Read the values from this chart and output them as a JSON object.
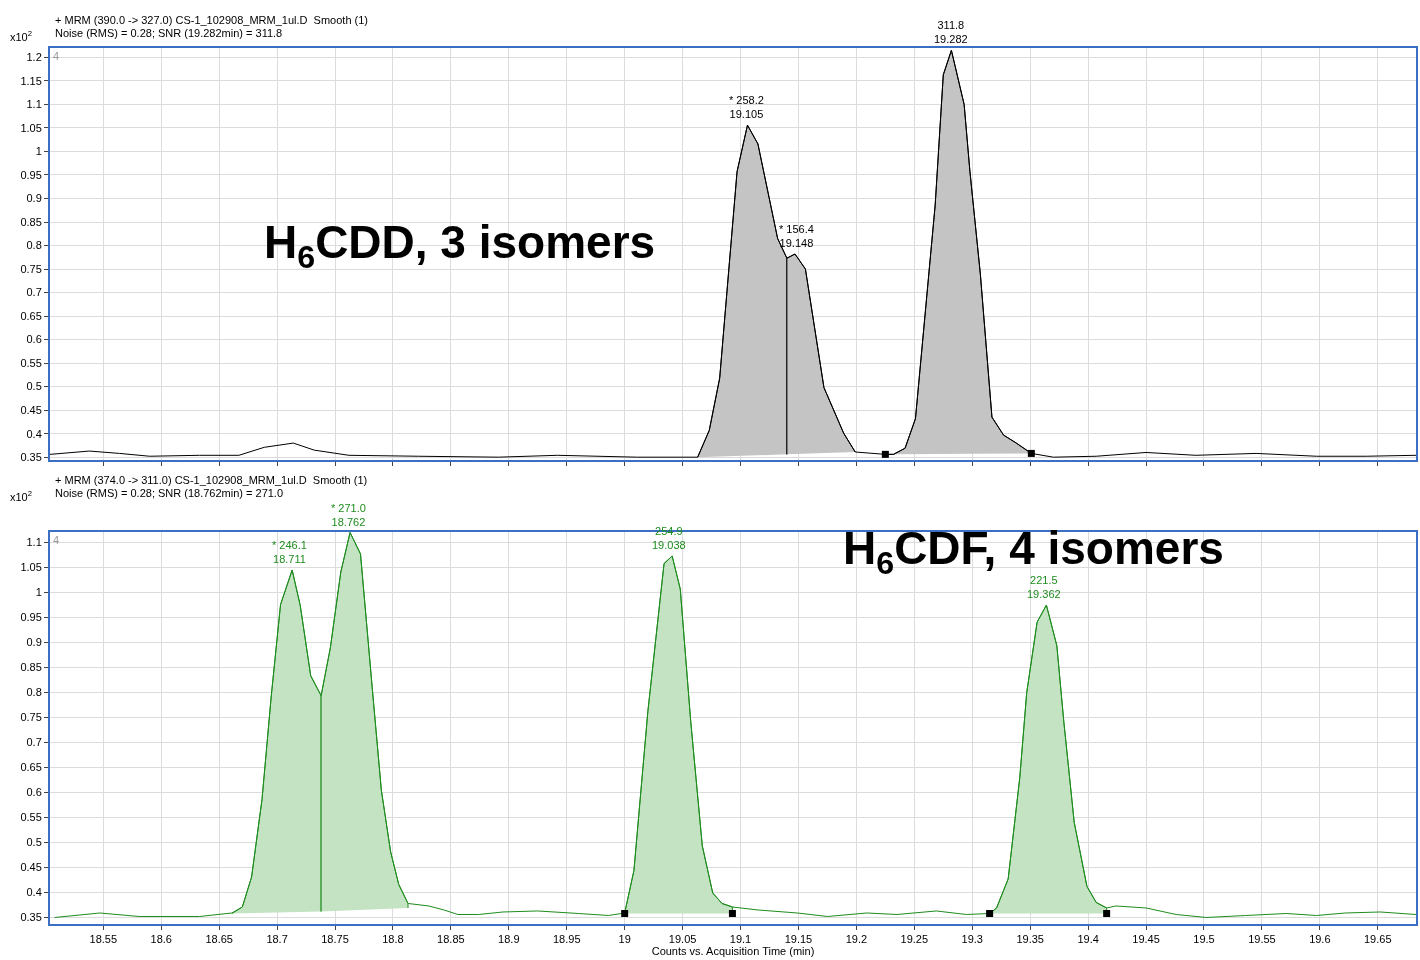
{
  "chart_data": [
    {
      "type": "line",
      "title": "+ MRM (390.0 -> 327.0) CS-1_102908_MRM_1ul.D  Smooth (1)",
      "subtitle": "Noise (RMS) = 0.28; SNR (19.282min) = 311.8",
      "ylabel": "x10$^{2}$",
      "xlim": [
        18.504,
        19.683
      ],
      "xticks": [
        18.55,
        18.6,
        18.65,
        18.7,
        18.75,
        18.8,
        18.85,
        18.9,
        18.95,
        19,
        19.05,
        19.1,
        19.15,
        19.2,
        19.25,
        19.3,
        19.35,
        19.4,
        19.45,
        19.5,
        19.55,
        19.6,
        19.65
      ],
      "ylim": [
        0.344,
        1.22
      ],
      "yticks": [
        0.35,
        0.4,
        0.45,
        0.5,
        0.55,
        0.6,
        0.65,
        0.7,
        0.75,
        0.8,
        0.85,
        0.9,
        0.95,
        1,
        1.05,
        1.1,
        1.15,
        1.2
      ],
      "grid": true,
      "tick_labels": "y",
      "series": [
        {
          "color": "#000000",
          "x": [
            18.504,
            18.538,
            18.564,
            18.59,
            18.633,
            18.667,
            18.689,
            18.714,
            18.732,
            18.762,
            18.822,
            18.891,
            18.942,
            19.011,
            19.063,
            19.073,
            19.082,
            19.097,
            19.106,
            19.115,
            19.132,
            19.14,
            19.147,
            19.156,
            19.172,
            19.189,
            19.199,
            19.225,
            19.232,
            19.242,
            19.251,
            19.268,
            19.275,
            19.282,
            19.293,
            19.298,
            19.307,
            19.317,
            19.327,
            19.338,
            19.351,
            19.37,
            19.407,
            19.45,
            19.493,
            19.545,
            19.597,
            19.64,
            19.683
          ],
          "values": [
            0.356,
            0.363,
            0.358,
            0.352,
            0.354,
            0.354,
            0.371,
            0.38,
            0.365,
            0.354,
            0.352,
            0.35,
            0.354,
            0.35,
            0.35,
            0.407,
            0.518,
            0.957,
            1.056,
            1.016,
            0.815,
            0.773,
            0.782,
            0.75,
            0.498,
            0.401,
            0.361,
            0.356,
            0.356,
            0.369,
            0.432,
            0.886,
            1.163,
            1.215,
            1.1,
            0.957,
            0.739,
            0.435,
            0.397,
            0.38,
            0.358,
            0.35,
            0.352,
            0.36,
            0.354,
            0.358,
            0.352,
            0.352,
            0.354
          ]
        },
        {
          "type": "area",
          "color": "#c4c4c4",
          "x": [
            19.063,
            19.073,
            19.082,
            19.097,
            19.106,
            19.115,
            19.132,
            19.14,
            19.14
          ],
          "values": [
            0.35,
            0.407,
            0.518,
            0.957,
            1.056,
            1.016,
            0.815,
            0.773,
            0.356
          ]
        },
        {
          "type": "area",
          "color": "#c4c4c4",
          "x": [
            19.14,
            19.14,
            19.147,
            19.156,
            19.172,
            19.189,
            19.199
          ],
          "values": [
            0.356,
            0.773,
            0.782,
            0.75,
            0.498,
            0.401,
            0.361
          ]
        },
        {
          "type": "area",
          "color": "#c4c4c4",
          "x": [
            19.225,
            19.232,
            19.242,
            19.251,
            19.268,
            19.275,
            19.282,
            19.293,
            19.298,
            19.307,
            19.317,
            19.327,
            19.338,
            19.351
          ],
          "values": [
            0.356,
            0.356,
            0.369,
            0.432,
            0.886,
            1.163,
            1.215,
            1.1,
            0.957,
            0.739,
            0.435,
            0.397,
            0.38,
            0.358
          ]
        },
        {
          "type": "scatter",
          "marker": "square",
          "color": "#000000",
          "x": [
            19.225,
            19.351
          ],
          "values": [
            0.356,
            0.358
          ]
        }
      ],
      "annotations": [
        {
          "text": "* 258.2\n19.105",
          "x": 19.105,
          "y": 1.056
        },
        {
          "text": "* 156.4\n19.148",
          "x": 19.148,
          "y": 0.782
        },
        {
          "text": "311.8\n19.282",
          "x": 19.282,
          "y": 1.215
        },
        "H$_{6}$CDD, 3 isomers",
        "4"
      ]
    },
    {
      "type": "line",
      "title": "+ MRM (374.0 -> 311.0) CS-1_102908_MRM_1ul.D  Smooth (1)",
      "subtitle": "Noise (RMS) = 0.28; SNR (18.762min) = 271.0",
      "ylabel": "x10$^{2}$",
      "xlabel": "Counts vs. Acquisition Time (min)",
      "xlim": [
        18.504,
        19.683
      ],
      "xticks": [
        18.55,
        18.6,
        18.65,
        18.7,
        18.75,
        18.8,
        18.85,
        18.9,
        18.95,
        19,
        19.05,
        19.1,
        19.15,
        19.2,
        19.25,
        19.3,
        19.35,
        19.4,
        19.45,
        19.5,
        19.55,
        19.6,
        19.65
      ],
      "ylim": [
        0.337,
        1.12
      ],
      "yticks": [
        0.35,
        0.4,
        0.45,
        0.5,
        0.55,
        0.6,
        0.65,
        0.7,
        0.75,
        0.8,
        0.85,
        0.9,
        0.95,
        1,
        1.05,
        1.1
      ],
      "grid": true,
      "series": [
        {
          "color": "#1e8c1e",
          "x": [
            18.508,
            18.547,
            18.581,
            18.633,
            18.661,
            18.67,
            18.678,
            18.687,
            18.695,
            18.703,
            18.713,
            18.72,
            18.729,
            18.738,
            18.746,
            18.755,
            18.763,
            18.772,
            18.782,
            18.79,
            18.798,
            18.805,
            18.813,
            18.831,
            18.844,
            18.856,
            18.874,
            18.895,
            18.925,
            18.96,
            18.986,
            19.0,
            19.008,
            19.02,
            19.034,
            19.041,
            19.048,
            19.057,
            19.067,
            19.076,
            19.084,
            19.093,
            19.115,
            19.149,
            19.175,
            19.209,
            19.235,
            19.269,
            19.295,
            19.315,
            19.321,
            19.331,
            19.341,
            19.347,
            19.356,
            19.364,
            19.373,
            19.379,
            19.388,
            19.399,
            19.407,
            19.416,
            19.424,
            19.45,
            19.476,
            19.502,
            19.536,
            19.571,
            19.597,
            19.622,
            19.652,
            19.683
          ],
          "values": [
            0.35,
            0.359,
            0.352,
            0.352,
            0.359,
            0.371,
            0.431,
            0.586,
            0.793,
            0.975,
            1.044,
            0.973,
            0.833,
            0.793,
            0.889,
            1.04,
            1.119,
            1.076,
            0.812,
            0.604,
            0.481,
            0.416,
            0.378,
            0.373,
            0.365,
            0.356,
            0.356,
            0.361,
            0.363,
            0.358,
            0.354,
            0.359,
            0.444,
            0.761,
            1.057,
            1.072,
            1.006,
            0.742,
            0.493,
            0.399,
            0.378,
            0.371,
            0.365,
            0.359,
            0.352,
            0.359,
            0.356,
            0.363,
            0.356,
            0.358,
            0.369,
            0.427,
            0.629,
            0.799,
            0.94,
            0.974,
            0.893,
            0.742,
            0.54,
            0.412,
            0.38,
            0.369,
            0.373,
            0.369,
            0.356,
            0.35,
            0.354,
            0.358,
            0.354,
            0.359,
            0.361,
            0.356
          ]
        },
        {
          "type": "area",
          "color": "#c3e3c3",
          "x": [
            18.661,
            18.67,
            18.678,
            18.687,
            18.695,
            18.703,
            18.713,
            18.72,
            18.729,
            18.738,
            18.738
          ],
          "values": [
            0.358,
            0.371,
            0.431,
            0.586,
            0.793,
            0.975,
            1.044,
            0.973,
            0.833,
            0.793,
            0.362
          ]
        },
        {
          "type": "area",
          "color": "#c3e3c3",
          "x": [
            18.738,
            18.738,
            18.746,
            18.755,
            18.763,
            18.772,
            18.782,
            18.79,
            18.798,
            18.805,
            18.813,
            18.813
          ],
          "values": [
            0.362,
            0.793,
            0.889,
            1.04,
            1.119,
            1.076,
            0.812,
            0.604,
            0.481,
            0.416,
            0.378,
            0.369
          ]
        },
        {
          "type": "area",
          "color": "#c3e3c3",
          "x": [
            19.0,
            19.008,
            19.02,
            19.034,
            19.041,
            19.048,
            19.057,
            19.067,
            19.076,
            19.084,
            19.093,
            19.093
          ],
          "values": [
            0.358,
            0.444,
            0.761,
            1.057,
            1.072,
            1.006,
            0.742,
            0.493,
            0.399,
            0.378,
            0.371,
            0.358
          ]
        },
        {
          "type": "area",
          "color": "#c3e3c3",
          "x": [
            19.315,
            19.321,
            19.331,
            19.341,
            19.347,
            19.356,
            19.364,
            19.373,
            19.379,
            19.388,
            19.399,
            19.407,
            19.416,
            19.416
          ],
          "values": [
            0.358,
            0.369,
            0.427,
            0.629,
            0.799,
            0.94,
            0.974,
            0.893,
            0.742,
            0.54,
            0.412,
            0.38,
            0.369,
            0.358
          ]
        },
        {
          "type": "scatter",
          "marker": "square",
          "color": "#000000",
          "x": [
            19.0,
            19.093,
            19.315,
            19.416
          ],
          "values": [
            0.358,
            0.358,
            0.358,
            0.358
          ]
        }
      ],
      "annotations": [
        {
          "text": "* 246.1\n18.711",
          "x": 18.711,
          "y": 1.044
        },
        {
          "text": "* 271.0\n18.762",
          "x": 18.762,
          "y": 1.119
        },
        {
          "text": "254.9\n19.038",
          "x": 19.038,
          "y": 1.072
        },
        {
          "text": "221.5\n19.362",
          "x": 19.362,
          "y": 0.974
        },
        "H$_{6}$CDF, 4 isomers",
        "4"
      ]
    }
  ]
}
